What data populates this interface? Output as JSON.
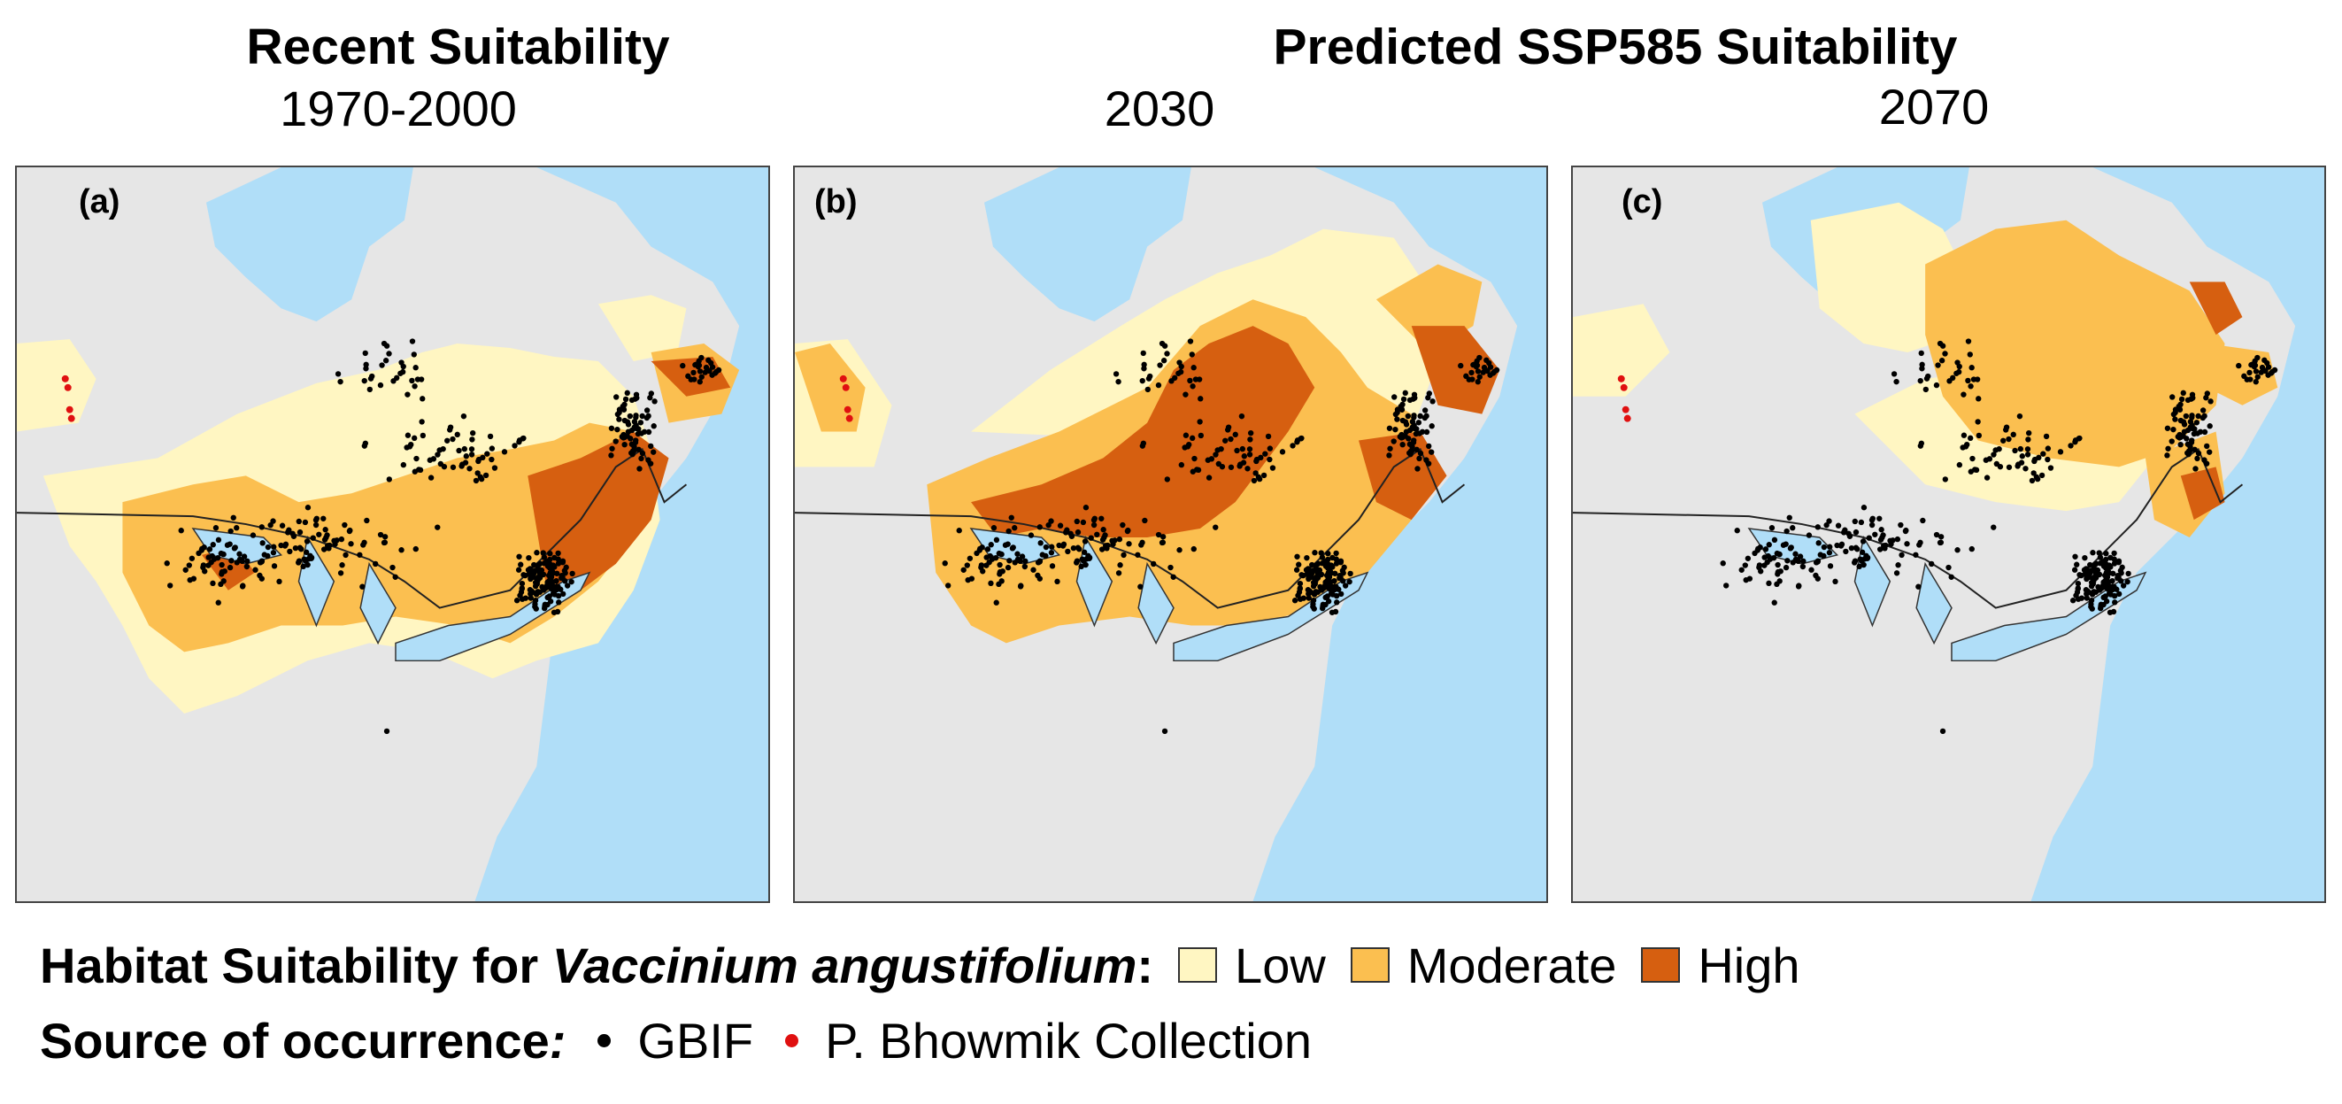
{
  "headings": {
    "recent": "Recent Suitability",
    "predicted": "Predicted SSP585 Suitability"
  },
  "periods": [
    "1970-2000",
    "2030",
    "2070"
  ],
  "panels": [
    {
      "label": "(a)",
      "period": "1970-2000"
    },
    {
      "label": "(b)",
      "period": "2030"
    },
    {
      "label": "(c)",
      "period": "2070"
    }
  ],
  "legend": {
    "suitability_title_prefix": "Habitat Suitability for ",
    "species": "Vaccinium angustifolium",
    "suitability_title_suffix": ":",
    "classes": [
      {
        "label": "Low",
        "color": "#fff6c2"
      },
      {
        "label": "Moderate",
        "color": "#fbbf50"
      },
      {
        "label": "High",
        "color": "#d65f10"
      }
    ],
    "source_title": "Source of occurrence",
    "source_suffix": ":",
    "sources": [
      {
        "label": "GBIF",
        "color": "#000000"
      },
      {
        "label": "P. Bhowmik Collection",
        "color": "#e01010"
      }
    ]
  },
  "colors": {
    "land": "#e6e6e6",
    "water": "#b0def8",
    "low": "#fff6c2",
    "moderate": "#fbbf50",
    "high": "#d65f10",
    "gbif": "#000000",
    "collection": "#e01010"
  }
}
